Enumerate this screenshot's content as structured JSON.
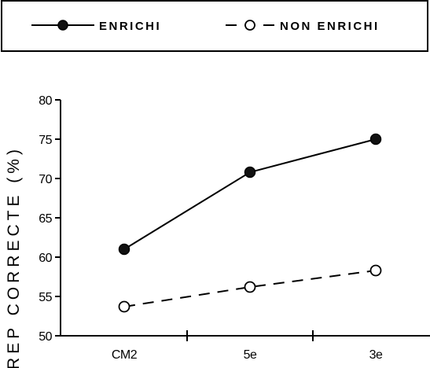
{
  "chart_data": {
    "type": "line",
    "title": "",
    "xlabel": "",
    "ylabel": "REP CORRECTE (%)",
    "categories": [
      "CM2",
      "5e",
      "3e"
    ],
    "ylim": [
      50,
      80
    ],
    "yticks": [
      50,
      55,
      60,
      65,
      70,
      75,
      80
    ],
    "grid": false,
    "legend_position": "top",
    "series": [
      {
        "name": "ENRICHI",
        "values": [
          61,
          70.8,
          75
        ],
        "line_style": "solid",
        "marker": "filled-circle",
        "color": "#000000"
      },
      {
        "name": "NON ENRICHI",
        "values": [
          53.7,
          56.2,
          58.3
        ],
        "line_style": "dashed",
        "marker": "open-circle",
        "color": "#000000"
      }
    ]
  }
}
